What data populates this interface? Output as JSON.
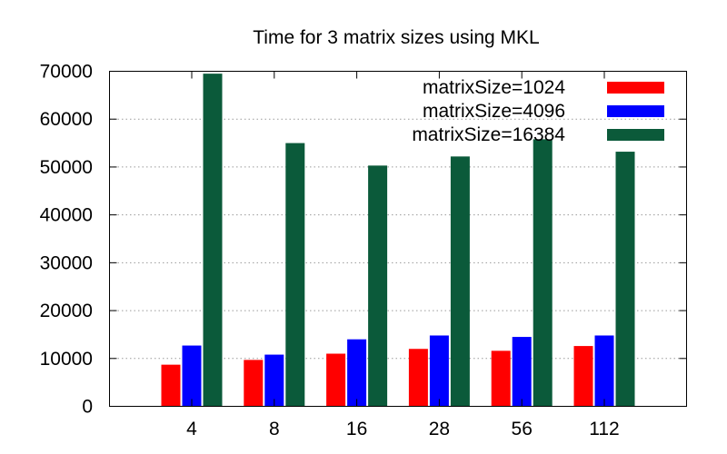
{
  "chart_data": {
    "type": "bar",
    "title": "Time for 3 matrix sizes using MKL",
    "xlabel": "",
    "ylabel": "",
    "categories": [
      "4",
      "8",
      "16",
      "28",
      "56",
      "112"
    ],
    "ylim": [
      0,
      70000
    ],
    "yticks": [
      0,
      10000,
      20000,
      30000,
      40000,
      50000,
      60000,
      70000
    ],
    "grid": true,
    "legend_position": "top-right",
    "series": [
      {
        "name": "matrixSize=1024",
        "color": "#ff0000",
        "values": [
          8700,
          9700,
          11000,
          12000,
          11600,
          12600
        ]
      },
      {
        "name": "matrixSize=4096",
        "color": "#0000ff",
        "values": [
          12700,
          10800,
          14000,
          14800,
          14500,
          14800
        ]
      },
      {
        "name": "matrixSize=16384",
        "color": "#0b5a3a",
        "values": [
          69500,
          55000,
          50300,
          52200,
          55800,
          53200
        ]
      }
    ]
  }
}
